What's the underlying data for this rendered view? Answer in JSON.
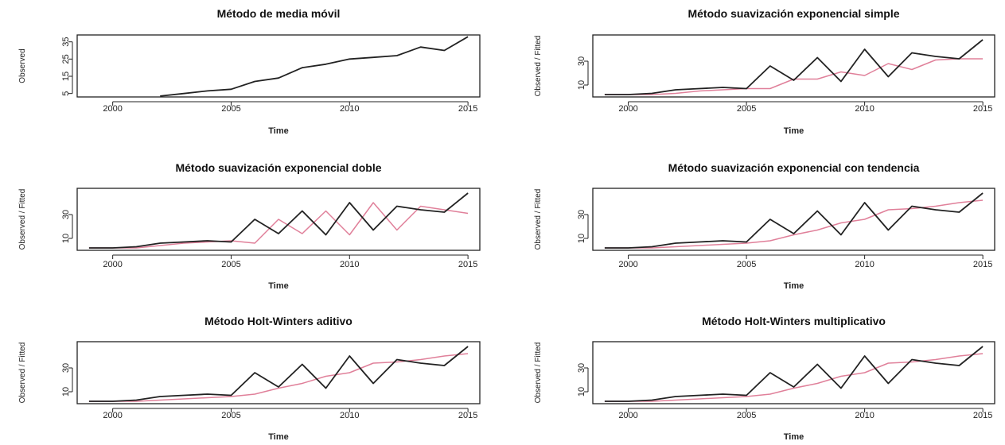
{
  "colors": {
    "observed": "#222222",
    "fitted": "#e0809a",
    "axis": "#222222"
  },
  "chart_data": [
    {
      "type": "line",
      "title": "Método de media móvil",
      "xlabel": "Time",
      "ylabel": "Observed",
      "xlim": [
        1998.5,
        2015.5
      ],
      "ylim": [
        3,
        39
      ],
      "xticks": [
        2000,
        2005,
        2010,
        2015
      ],
      "yticks": [
        5,
        15,
        25,
        35
      ],
      "series": [
        {
          "role": "observed",
          "x": [
            2002,
            2003,
            2004,
            2005,
            2006,
            2007,
            2008,
            2009,
            2010,
            2011,
            2012,
            2013,
            2014,
            2015
          ],
          "values": [
            3.5,
            5,
            6.5,
            7.5,
            12,
            14,
            20,
            22,
            25,
            26,
            27,
            32,
            30,
            38
          ]
        }
      ]
    },
    {
      "type": "line",
      "title": "Método suavización exponencial simple",
      "xlabel": "Time",
      "ylabel": "Observed / Fitted",
      "xlim": [
        1998.5,
        2015.5
      ],
      "ylim": [
        0,
        52
      ],
      "xticks": [
        2000,
        2005,
        2010,
        2015
      ],
      "yticks": [
        10,
        30
      ],
      "series": [
        {
          "role": "observed",
          "x": [
            1999,
            2000,
            2001,
            2002,
            2003,
            2004,
            2005,
            2006,
            2007,
            2008,
            2009,
            2010,
            2011,
            2012,
            2013,
            2014,
            2015
          ],
          "values": [
            2,
            2,
            3,
            6,
            7,
            8,
            7,
            26,
            14,
            33,
            13,
            40,
            17,
            37,
            34,
            32,
            48
          ]
        },
        {
          "role": "fitted",
          "x": [
            1999,
            2000,
            2001,
            2002,
            2003,
            2004,
            2005,
            2006,
            2007,
            2008,
            2009,
            2010,
            2011,
            2012,
            2013,
            2014,
            2015
          ],
          "values": [
            2,
            2,
            2,
            3,
            5,
            6,
            7,
            7,
            15,
            15,
            21,
            18,
            28,
            23,
            31,
            32,
            32
          ]
        }
      ]
    },
    {
      "type": "line",
      "title": "Método suavización exponencial doble",
      "xlabel": "Time",
      "ylabel": "Observed / Fitted",
      "xlim": [
        1998.5,
        2015.5
      ],
      "ylim": [
        0,
        52
      ],
      "xticks": [
        2000,
        2005,
        2010,
        2015
      ],
      "yticks": [
        10,
        30
      ],
      "series": [
        {
          "role": "observed",
          "x": [
            1999,
            2000,
            2001,
            2002,
            2003,
            2004,
            2005,
            2006,
            2007,
            2008,
            2009,
            2010,
            2011,
            2012,
            2013,
            2014,
            2015
          ],
          "values": [
            2,
            2,
            3,
            6,
            7,
            8,
            7,
            26,
            14,
            33,
            13,
            40,
            17,
            37,
            34,
            32,
            48
          ]
        },
        {
          "role": "fitted",
          "x": [
            1999,
            2000,
            2001,
            2002,
            2003,
            2004,
            2005,
            2006,
            2007,
            2008,
            2009,
            2010,
            2011,
            2012,
            2013,
            2014,
            2015
          ],
          "values": [
            2,
            2,
            2,
            4,
            6,
            7,
            8,
            6,
            26,
            14,
            33,
            13,
            40,
            17,
            37,
            34,
            31
          ]
        }
      ]
    },
    {
      "type": "line",
      "title": "Método suavización exponencial con tendencia",
      "xlabel": "Time",
      "ylabel": "Observed / Fitted",
      "xlim": [
        1998.5,
        2015.5
      ],
      "ylim": [
        0,
        52
      ],
      "xticks": [
        2000,
        2005,
        2010,
        2015
      ],
      "yticks": [
        10,
        30
      ],
      "series": [
        {
          "role": "observed",
          "x": [
            1999,
            2000,
            2001,
            2002,
            2003,
            2004,
            2005,
            2006,
            2007,
            2008,
            2009,
            2010,
            2011,
            2012,
            2013,
            2014,
            2015
          ],
          "values": [
            2,
            2,
            3,
            6,
            7,
            8,
            7,
            26,
            14,
            33,
            13,
            40,
            17,
            37,
            34,
            32,
            48
          ]
        },
        {
          "role": "fitted",
          "x": [
            1999,
            2000,
            2001,
            2002,
            2003,
            2004,
            2005,
            2006,
            2007,
            2008,
            2009,
            2010,
            2011,
            2012,
            2013,
            2014,
            2015
          ],
          "values": [
            2,
            2,
            2,
            3,
            4,
            5,
            6,
            8,
            13,
            17,
            23,
            26,
            34,
            35,
            37,
            40,
            42
          ]
        }
      ]
    },
    {
      "type": "line",
      "title": "Método Holt-Winters aditivo",
      "xlabel": "Time",
      "ylabel": "Observed / Fitted",
      "xlim": [
        1998.5,
        2015.5
      ],
      "ylim": [
        0,
        52
      ],
      "xticks": [
        2000,
        2005,
        2010,
        2015
      ],
      "yticks": [
        10,
        30
      ],
      "series": [
        {
          "role": "observed",
          "x": [
            1999,
            2000,
            2001,
            2002,
            2003,
            2004,
            2005,
            2006,
            2007,
            2008,
            2009,
            2010,
            2011,
            2012,
            2013,
            2014,
            2015
          ],
          "values": [
            2,
            2,
            3,
            6,
            7,
            8,
            7,
            26,
            14,
            33,
            13,
            40,
            17,
            37,
            34,
            32,
            48
          ]
        },
        {
          "role": "fitted",
          "x": [
            1999,
            2000,
            2001,
            2002,
            2003,
            2004,
            2005,
            2006,
            2007,
            2008,
            2009,
            2010,
            2011,
            2012,
            2013,
            2014,
            2015
          ],
          "values": [
            2,
            2,
            2,
            3,
            4,
            5,
            6,
            8,
            13,
            17,
            23,
            26,
            34,
            35,
            37,
            40,
            42
          ]
        }
      ]
    },
    {
      "type": "line",
      "title": "Método Holt-Winters multiplicativo",
      "xlabel": "Time",
      "ylabel": "Observed / Fitted",
      "xlim": [
        1998.5,
        2015.5
      ],
      "ylim": [
        0,
        52
      ],
      "xticks": [
        2000,
        2005,
        2010,
        2015
      ],
      "yticks": [
        10,
        30
      ],
      "series": [
        {
          "role": "observed",
          "x": [
            1999,
            2000,
            2001,
            2002,
            2003,
            2004,
            2005,
            2006,
            2007,
            2008,
            2009,
            2010,
            2011,
            2012,
            2013,
            2014,
            2015
          ],
          "values": [
            2,
            2,
            3,
            6,
            7,
            8,
            7,
            26,
            14,
            33,
            13,
            40,
            17,
            37,
            34,
            32,
            48
          ]
        },
        {
          "role": "fitted",
          "x": [
            1999,
            2000,
            2001,
            2002,
            2003,
            2004,
            2005,
            2006,
            2007,
            2008,
            2009,
            2010,
            2011,
            2012,
            2013,
            2014,
            2015
          ],
          "values": [
            2,
            2,
            2,
            3,
            4,
            5,
            6,
            8,
            13,
            17,
            23,
            26,
            34,
            35,
            37,
            40,
            42
          ]
        }
      ]
    }
  ]
}
